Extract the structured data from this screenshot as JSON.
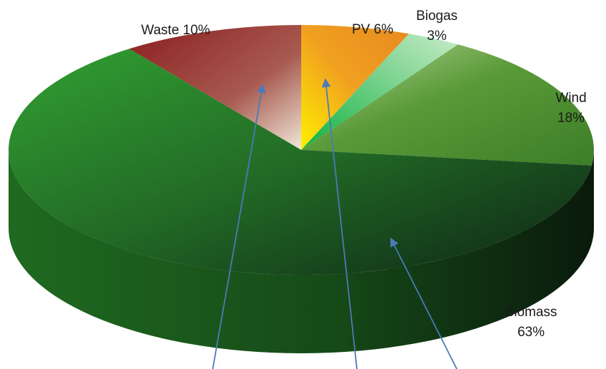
{
  "chart_data": {
    "type": "pie",
    "title": "",
    "slices": [
      {
        "name": "PV",
        "value": 6,
        "label": "PV 6%",
        "color": "#f0a020"
      },
      {
        "name": "Biogas",
        "value": 3,
        "label_lines": [
          "Biogas",
          "3%"
        ],
        "color": "#3fc060"
      },
      {
        "name": "Wind",
        "value": 18,
        "label_lines": [
          "Wind",
          "18%"
        ],
        "color": "#4e9a32"
      },
      {
        "name": "Biomass",
        "value": 63,
        "label_lines": [
          "Biomass",
          "63%"
        ],
        "color": "#2d8a2d"
      },
      {
        "name": "Waste",
        "value": 10,
        "label": "Waste 10%",
        "color": "#8e2a26"
      }
    ],
    "start_angle_deg": -90,
    "direction": "clockwise",
    "style": "3d",
    "legend": "none",
    "arrow_color": "#4a7ab8"
  }
}
